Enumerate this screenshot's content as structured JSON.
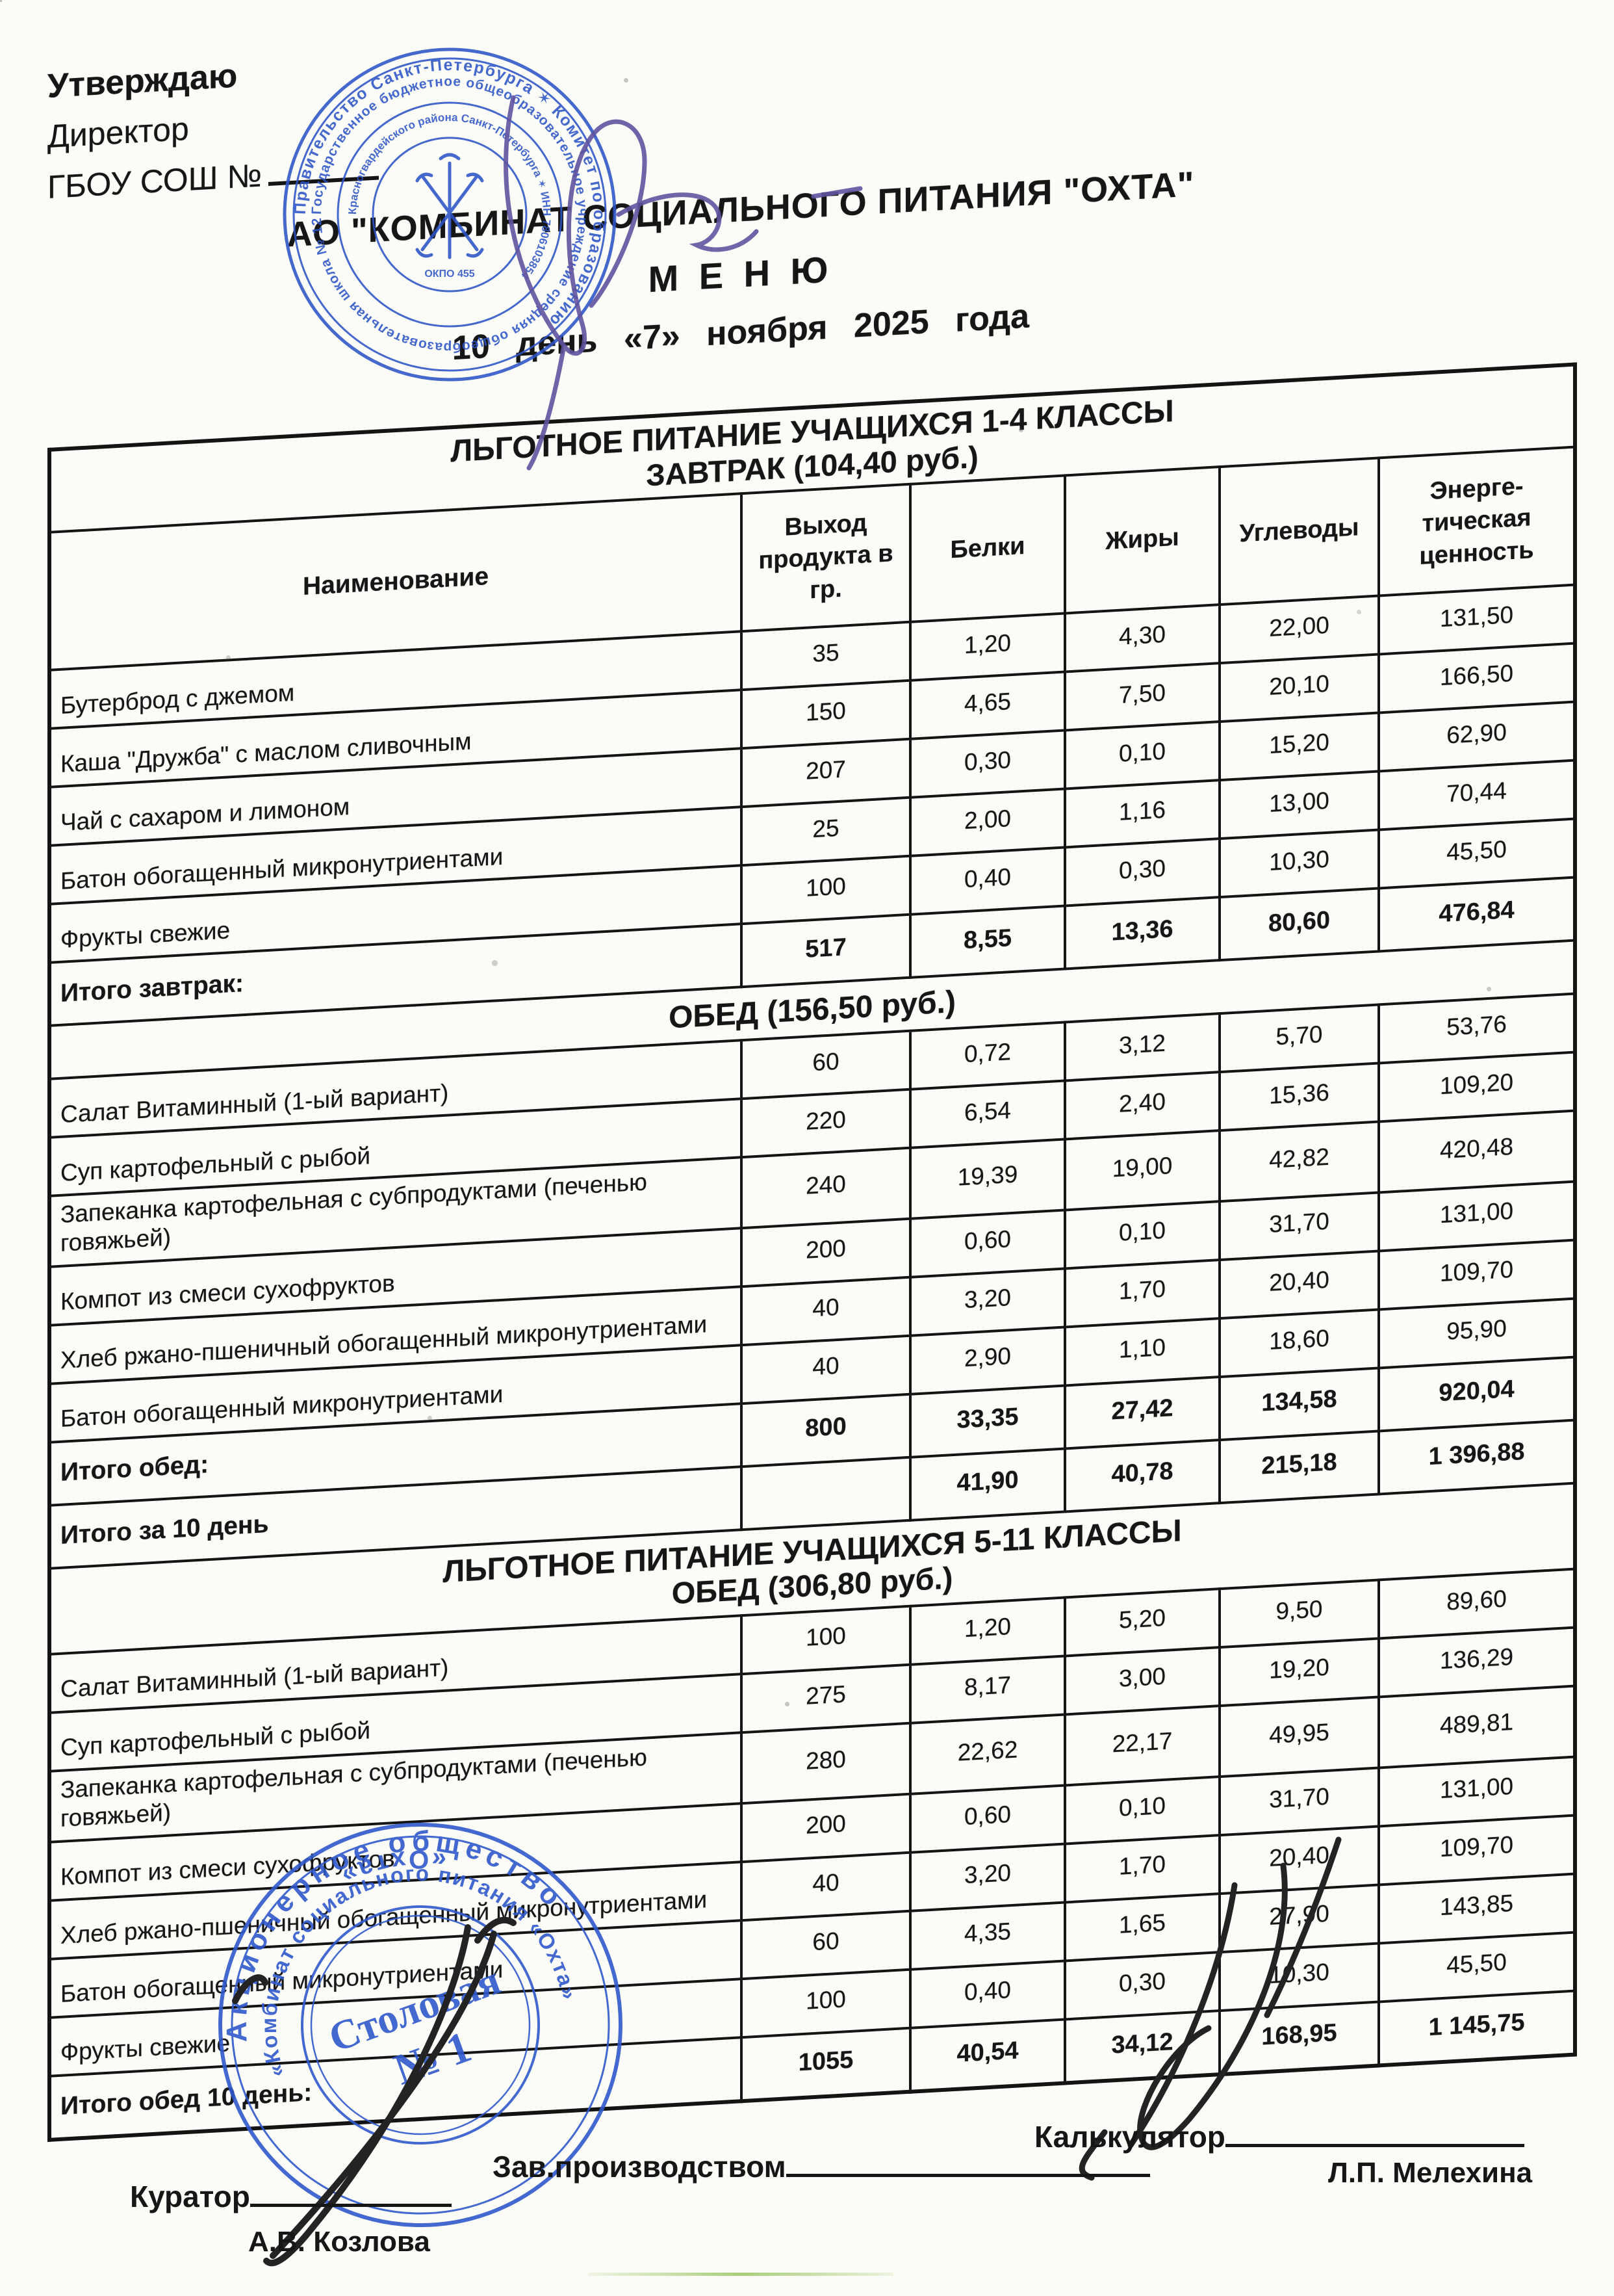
{
  "approval": {
    "line1": "Утверждаю",
    "line2": "Директор",
    "line3": "ГБОУ  СОШ №"
  },
  "header": {
    "org": "АО \"КОМБИНАТ СОЦИАЛЬНОГО ПИТАНИЯ \"ОХТА\"",
    "menu": "М Е Н Ю",
    "date_line": "10 день «7» ноября 2025 года"
  },
  "columns": {
    "name": "Наименование",
    "output": "Выход\nпродукта в\nгр.",
    "protein": "Белки",
    "fat": "Жиры",
    "carbs": "Углеводы",
    "energy": "Энерге-\nтическая\nценность"
  },
  "section1": {
    "title": "ЛЬГОТНОЕ ПИТАНИЕ УЧАЩИХСЯ  1-4 КЛАССЫ",
    "subtitle": "ЗАВТРАК (104,40 руб.)"
  },
  "breakfast": {
    "rows": [
      {
        "name": "Бутерброд с джемом",
        "out": "35",
        "p": "1,20",
        "f": "4,30",
        "c": "22,00",
        "e": "131,50"
      },
      {
        "name": "Каша \"Дружба\" с маслом сливочным",
        "out": "150",
        "p": "4,65",
        "f": "7,50",
        "c": "20,10",
        "e": "166,50"
      },
      {
        "name": "Чай с сахаром и лимоном",
        "out": "207",
        "p": "0,30",
        "f": "0,10",
        "c": "15,20",
        "e": "62,90"
      },
      {
        "name": "Батон обогащенный микронутриентами",
        "out": "25",
        "p": "2,00",
        "f": "1,16",
        "c": "13,00",
        "e": "70,44"
      },
      {
        "name": "Фрукты свежие",
        "out": "100",
        "p": "0,40",
        "f": "0,30",
        "c": "10,30",
        "e": "45,50"
      }
    ],
    "total": {
      "label": "Итого  завтрак:",
      "out": "517",
      "p": "8,55",
      "f": "13,36",
      "c": "80,60",
      "e": "476,84"
    }
  },
  "lunch": {
    "header": "ОБЕД (156,50 руб.)",
    "rows": [
      {
        "name": "Салат Витаминный (1-ый вариант)",
        "out": "60",
        "p": "0,72",
        "f": "3,12",
        "c": "5,70",
        "e": "53,76"
      },
      {
        "name": "Суп картофельный с рыбой",
        "out": "220",
        "p": "6,54",
        "f": "2,40",
        "c": "15,36",
        "e": "109,20"
      },
      {
        "name": "Запеканка картофельная с субпродуктами (печенью говяжьей)",
        "out": "240",
        "p": "19,39",
        "f": "19,00",
        "c": "42,82",
        "e": "420,48"
      },
      {
        "name": "Компот из смеси сухофруктов",
        "out": "200",
        "p": "0,60",
        "f": "0,10",
        "c": "31,70",
        "e": "131,00"
      },
      {
        "name": "Хлеб ржано-пшеничный обогащенный микронутриентами",
        "out": "40",
        "p": "3,20",
        "f": "1,70",
        "c": "20,40",
        "e": "109,70"
      },
      {
        "name": "Батон обогащенный микронутриентами",
        "out": "40",
        "p": "2,90",
        "f": "1,10",
        "c": "18,60",
        "e": "95,90"
      }
    ],
    "total": {
      "label": "Итого  обед:",
      "out": "800",
      "p": "33,35",
      "f": "27,42",
      "c": "134,58",
      "e": "920,04"
    }
  },
  "day_total": {
    "label": "Итого за 10 день",
    "out": "",
    "p": "41,90",
    "f": "40,78",
    "c": "215,18",
    "e": "1 396,88"
  },
  "section2": {
    "title": "ЛЬГОТНОЕ ПИТАНИЕ УЧАЩИХСЯ  5-11 КЛАССЫ",
    "subtitle": "ОБЕД (306,80 руб.)"
  },
  "lunch2": {
    "rows": [
      {
        "name": "Салат Витаминный (1-ый вариант)",
        "out": "100",
        "p": "1,20",
        "f": "5,20",
        "c": "9,50",
        "e": "89,60"
      },
      {
        "name": "Суп картофельный с рыбой",
        "out": "275",
        "p": "8,17",
        "f": "3,00",
        "c": "19,20",
        "e": "136,29"
      },
      {
        "name": "Запеканка картофельная с субпродуктами (печенью говяжьей)",
        "out": "280",
        "p": "22,62",
        "f": "22,17",
        "c": "49,95",
        "e": "489,81"
      },
      {
        "name": "Компот из смеси сухофруктов",
        "out": "200",
        "p": "0,60",
        "f": "0,10",
        "c": "31,70",
        "e": "131,00"
      },
      {
        "name": "Хлеб ржано-пшеничный обогащенный микронутриентами",
        "out": "40",
        "p": "3,20",
        "f": "1,70",
        "c": "20,40",
        "e": "109,70"
      },
      {
        "name": "Батон обогащенный микронутриентами",
        "out": "60",
        "p": "4,35",
        "f": "1,65",
        "c": "27,90",
        "e": "143,85"
      },
      {
        "name": "Фрукты свежие",
        "out": "100",
        "p": "0,40",
        "f": "0,30",
        "c": "10,30",
        "e": "45,50"
      }
    ],
    "total": {
      "label": "Итого обед 10 день:",
      "out": "1055",
      "p": "40,54",
      "f": "34,12",
      "c": "168,95",
      "e": "1 145,75"
    }
  },
  "footer": {
    "curator_label": "Куратор",
    "curator_name": "А.В. Козлова",
    "production_label": "Зав.производством",
    "calculator_label": "Калькулятор",
    "calculator_name": "Л.П. Мелехина"
  },
  "stamp_top": {
    "ring1": "Правительство Санкт-Петербурга ✶ Комитет по образованию",
    "ring2": "Государственное бюджетное общеобразовательное учреждение средняя общеобразовательная школа № 129",
    "ring3": "Красногвардейского района Санкт-Петербурга ✶ ИНН 7806103854",
    "center_small": "ОКПО 455"
  },
  "stamp_bottom": {
    "ring1": "Акционерное общество",
    "ring1b": "«Охта»",
    "ring2": "«Комбинат социального питания «Охта»",
    "center1": "Столовая",
    "center2": "№ 1"
  }
}
